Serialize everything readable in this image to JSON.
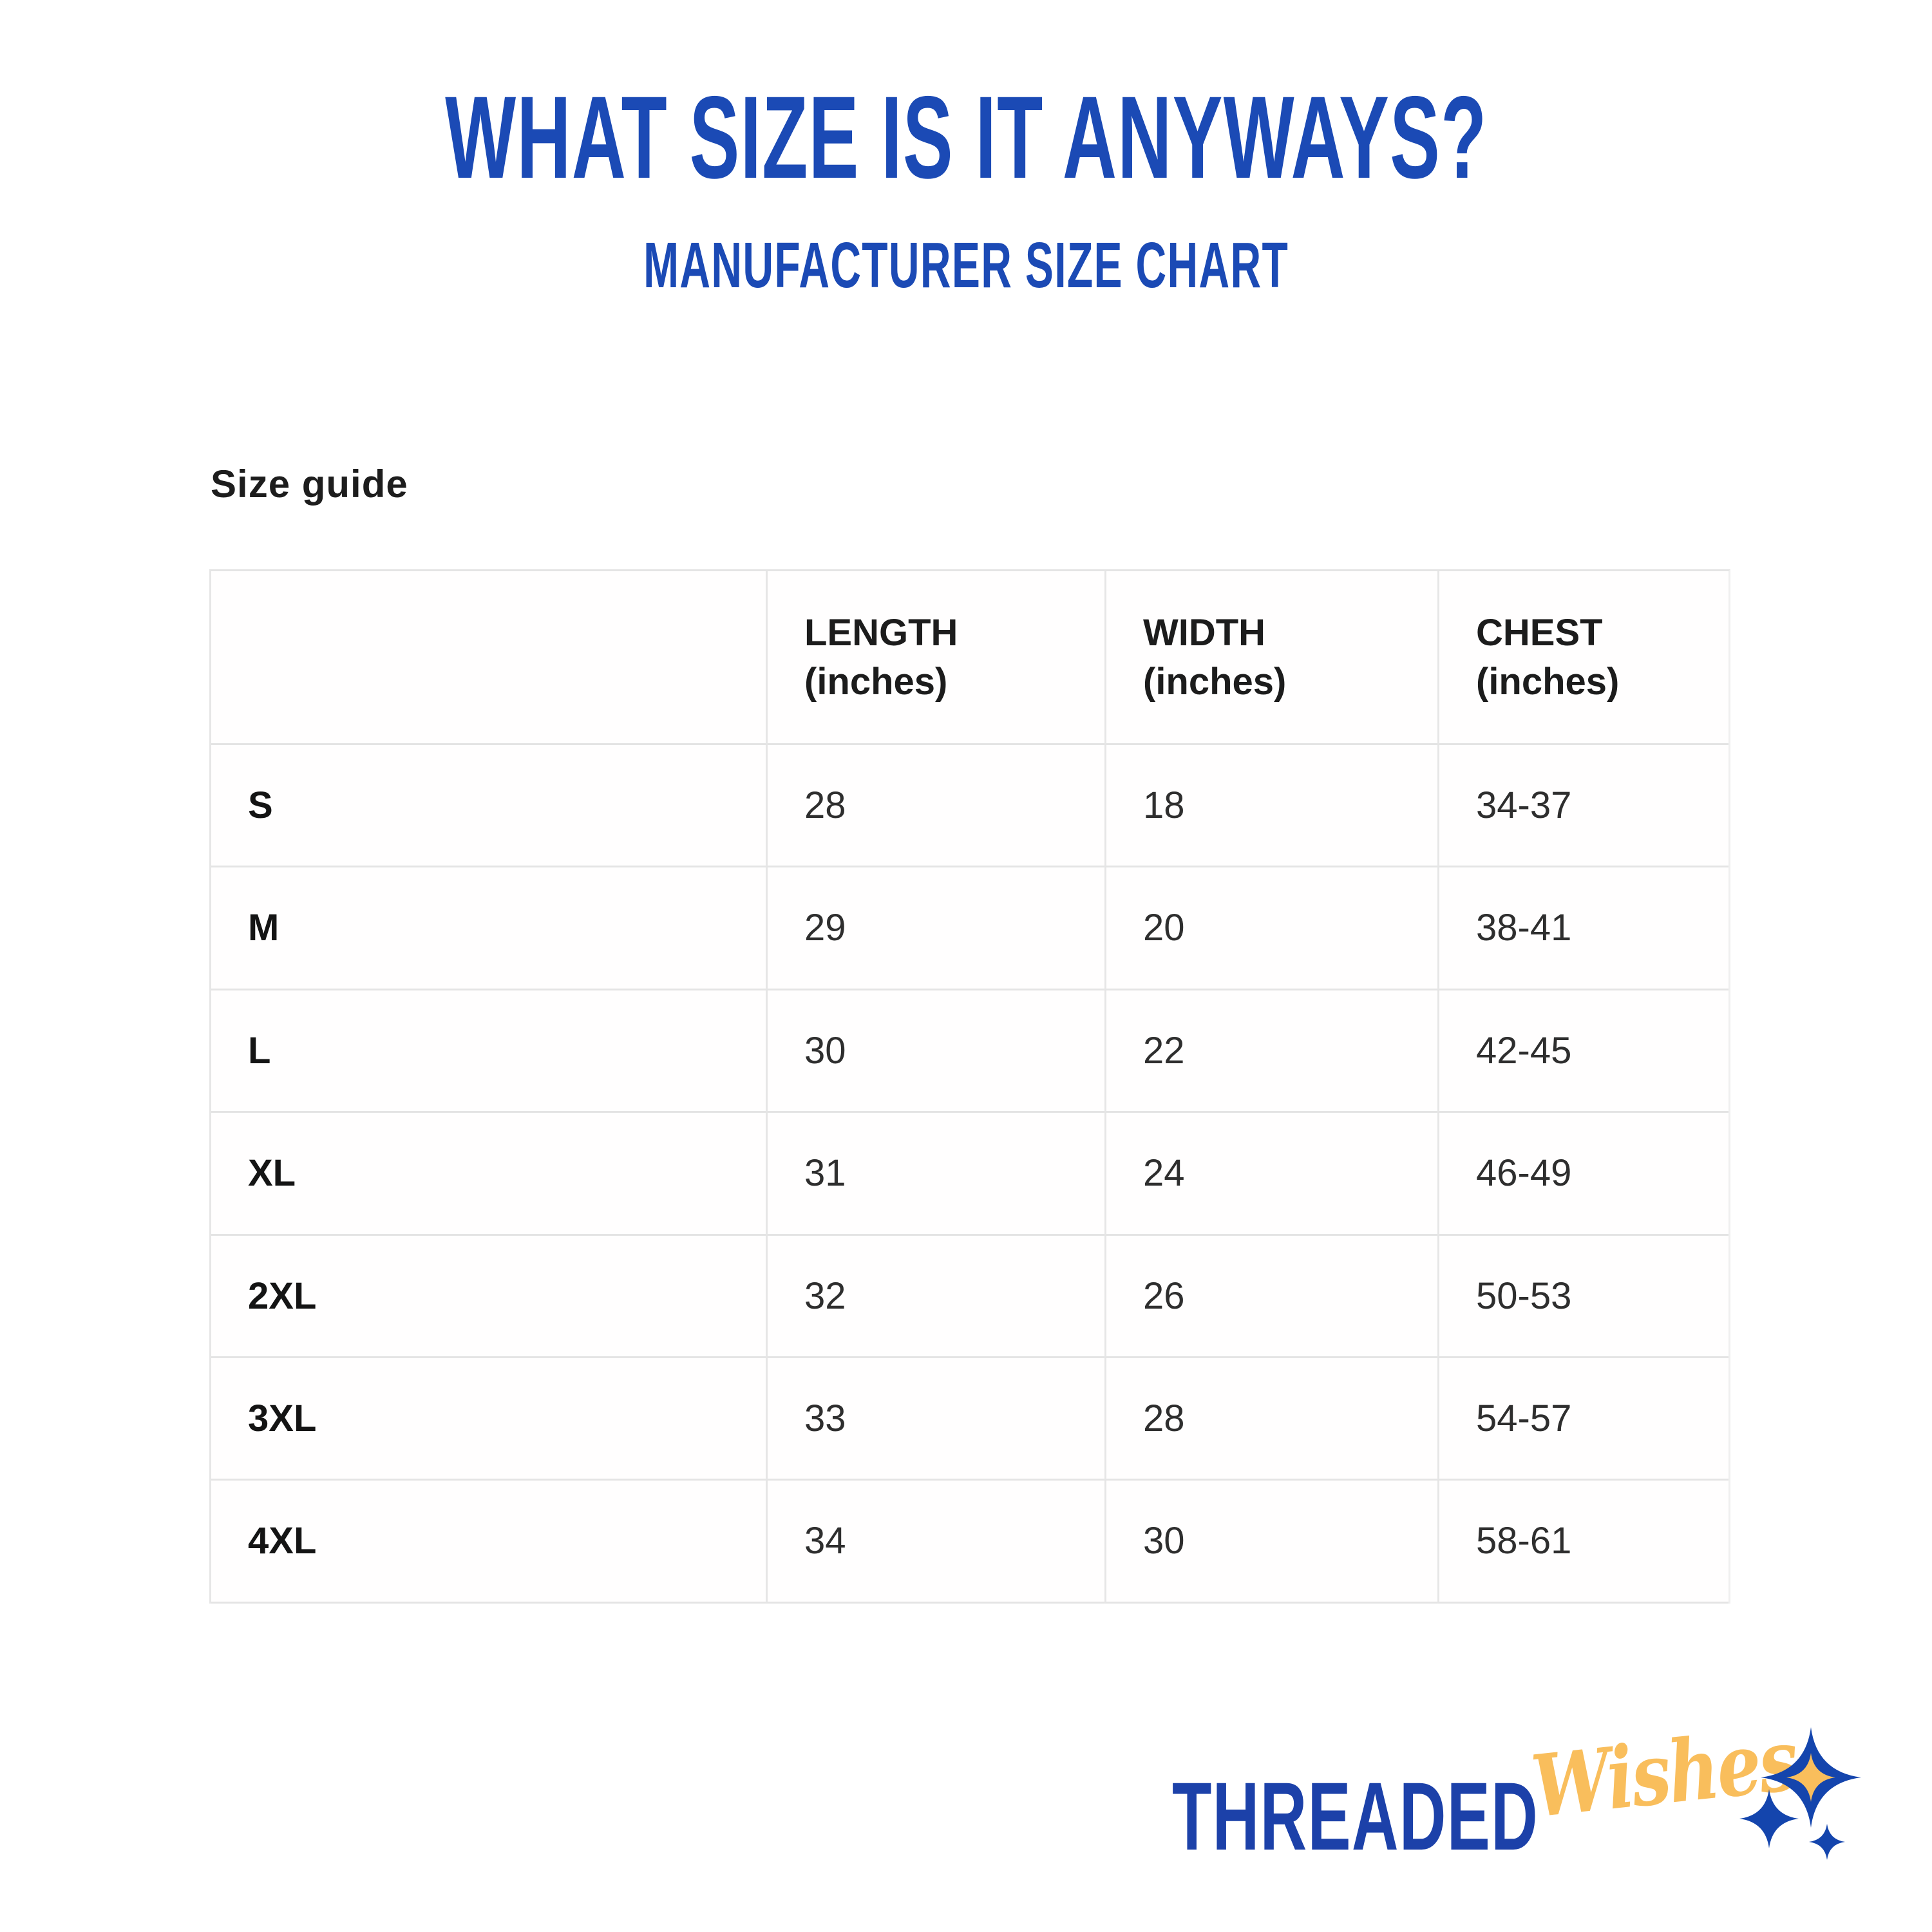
{
  "page": {
    "title": "WHAT SIZE IS IT ANYWAYS?",
    "subtitle": "MANUFACTURER SIZE CHART"
  },
  "size_guide": {
    "heading": "Size guide"
  },
  "table": {
    "columns": [
      {
        "label": "",
        "sub": ""
      },
      {
        "label": "LENGTH",
        "sub": "(inches)"
      },
      {
        "label": "WIDTH",
        "sub": "(inches)"
      },
      {
        "label": "CHEST",
        "sub": "(inches)"
      }
    ],
    "rows": [
      {
        "size": "S",
        "length": "28",
        "width": "18",
        "chest": "34-37"
      },
      {
        "size": "M",
        "length": "29",
        "width": "20",
        "chest": "38-41"
      },
      {
        "size": "L",
        "length": "30",
        "width": "22",
        "chest": "42-45"
      },
      {
        "size": "XL",
        "length": "31",
        "width": "24",
        "chest": "46-49"
      },
      {
        "size": "2XL",
        "length": "32",
        "width": "26",
        "chest": "50-53"
      },
      {
        "size": "3XL",
        "length": "33",
        "width": "28",
        "chest": "54-57"
      },
      {
        "size": "4XL",
        "length": "34",
        "width": "30",
        "chest": "58-61"
      }
    ]
  },
  "logo": {
    "brand_primary": "THREADED",
    "brand_secondary": "Wishes",
    "icon": "sparkles-icon"
  },
  "colors": {
    "accent_blue": "#1b4ab5",
    "logo_blue": "#1c41a9",
    "logo_gold": "#f9be5c",
    "table_border_gray": "#e4e4e4",
    "text_black": "#1c1c1c"
  },
  "chart_data": {
    "type": "table",
    "title": "WHAT SIZE IS IT ANYWAYS?",
    "subtitle": "MANUFACTURER SIZE CHART",
    "section_heading": "Size guide",
    "columns": [
      "",
      "LENGTH (inches)",
      "WIDTH (inches)",
      "CHEST (inches)"
    ],
    "rows": [
      [
        "S",
        28,
        18,
        "34-37"
      ],
      [
        "M",
        29,
        20,
        "38-41"
      ],
      [
        "L",
        30,
        22,
        "42-45"
      ],
      [
        "XL",
        31,
        24,
        "46-49"
      ],
      [
        "2XL",
        32,
        26,
        "50-53"
      ],
      [
        "3XL",
        33,
        28,
        "54-57"
      ],
      [
        "4XL",
        34,
        30,
        "58-61"
      ]
    ]
  }
}
